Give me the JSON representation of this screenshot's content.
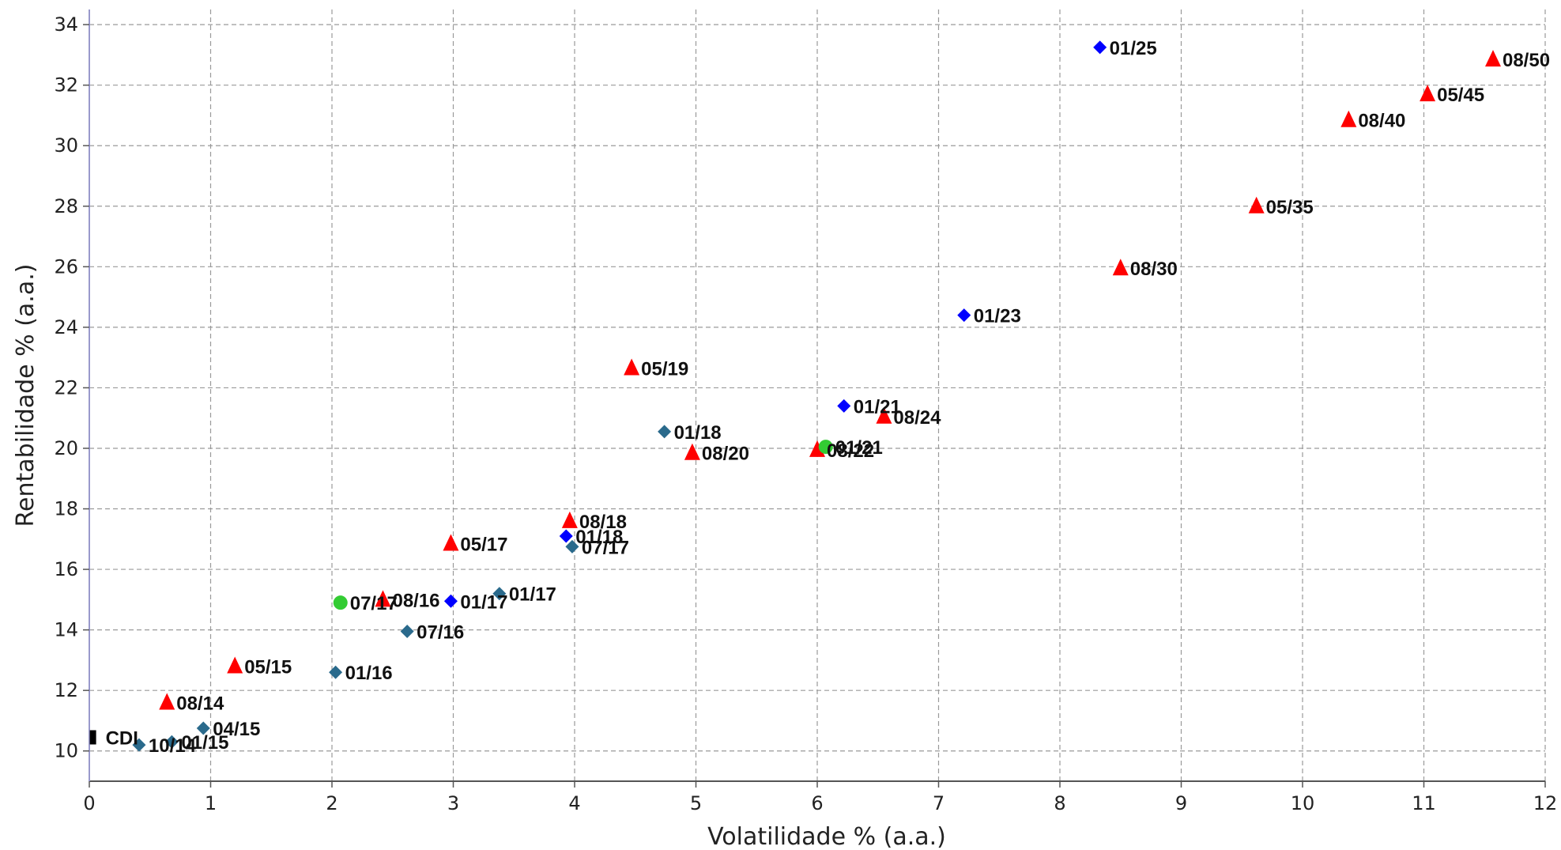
{
  "chart_data": {
    "type": "scatter",
    "xlabel": "Volatilidade % (a.a.)",
    "ylabel": "Rentabilidade % (a.a.)",
    "xlim": [
      0,
      12
    ],
    "ylim": [
      9,
      34.5
    ],
    "xticks": [
      "0",
      "1",
      "2",
      "3",
      "4",
      "5",
      "6",
      "7",
      "8",
      "9",
      "10",
      "11",
      "12"
    ],
    "yticks": [
      "10",
      "12",
      "14",
      "16",
      "18",
      "20",
      "22",
      "24",
      "26",
      "28",
      "30",
      "32",
      "34"
    ],
    "grid": true,
    "series": [
      {
        "marker": "square",
        "color": "#000000",
        "points": [
          {
            "label": "CDI",
            "x": 0.03,
            "y": 10.45
          }
        ]
      },
      {
        "marker": "diamond",
        "color": "#2a6a8c",
        "points": [
          {
            "label": "10/14",
            "x": 0.41,
            "y": 10.2
          },
          {
            "label": "01/15",
            "x": 0.68,
            "y": 10.3
          },
          {
            "label": "04/15",
            "x": 0.94,
            "y": 10.75
          },
          {
            "label": "01/16",
            "x": 2.03,
            "y": 12.6
          },
          {
            "label": "07/16",
            "x": 2.62,
            "y": 13.95
          },
          {
            "label": "01/17",
            "x": 3.38,
            "y": 15.2
          },
          {
            "label": "07/17",
            "x": 3.98,
            "y": 16.75
          },
          {
            "label": "01/18",
            "x": 4.74,
            "y": 20.55
          }
        ]
      },
      {
        "marker": "triangle",
        "color": "#ff0000",
        "points": [
          {
            "label": "08/14",
            "x": 0.64,
            "y": 11.6
          },
          {
            "label": "05/15",
            "x": 1.2,
            "y": 12.8
          },
          {
            "label": "08/16",
            "x": 2.42,
            "y": 15.0
          },
          {
            "label": "05/17",
            "x": 2.98,
            "y": 16.85
          },
          {
            "label": "08/18",
            "x": 3.96,
            "y": 17.6
          },
          {
            "label": "05/19",
            "x": 4.47,
            "y": 22.65
          },
          {
            "label": "08/20",
            "x": 4.97,
            "y": 19.85
          },
          {
            "label": "08/22",
            "x": 6.0,
            "y": 19.95
          },
          {
            "label": "08/24",
            "x": 6.55,
            "y": 21.05
          },
          {
            "label": "08/30",
            "x": 8.5,
            "y": 25.95
          },
          {
            "label": "05/35",
            "x": 9.62,
            "y": 28.0
          },
          {
            "label": "08/40",
            "x": 10.38,
            "y": 30.85
          },
          {
            "label": "05/45",
            "x": 11.03,
            "y": 31.7
          },
          {
            "label": "08/50",
            "x": 11.57,
            "y": 32.85
          }
        ]
      },
      {
        "marker": "diamond",
        "color": "#0000ff",
        "points": [
          {
            "label": "01/17",
            "x": 2.98,
            "y": 14.95
          },
          {
            "label": "01/18",
            "x": 3.93,
            "y": 17.1
          },
          {
            "label": "01/21",
            "x": 6.22,
            "y": 21.4
          },
          {
            "label": "01/23",
            "x": 7.21,
            "y": 24.4
          },
          {
            "label": "01/25",
            "x": 8.33,
            "y": 33.25
          }
        ]
      },
      {
        "marker": "circle",
        "color": "#33cc33",
        "points": [
          {
            "label": "07/17",
            "x": 2.07,
            "y": 14.9
          },
          {
            "label": "01/21",
            "x": 6.07,
            "y": 20.05
          }
        ]
      }
    ]
  }
}
